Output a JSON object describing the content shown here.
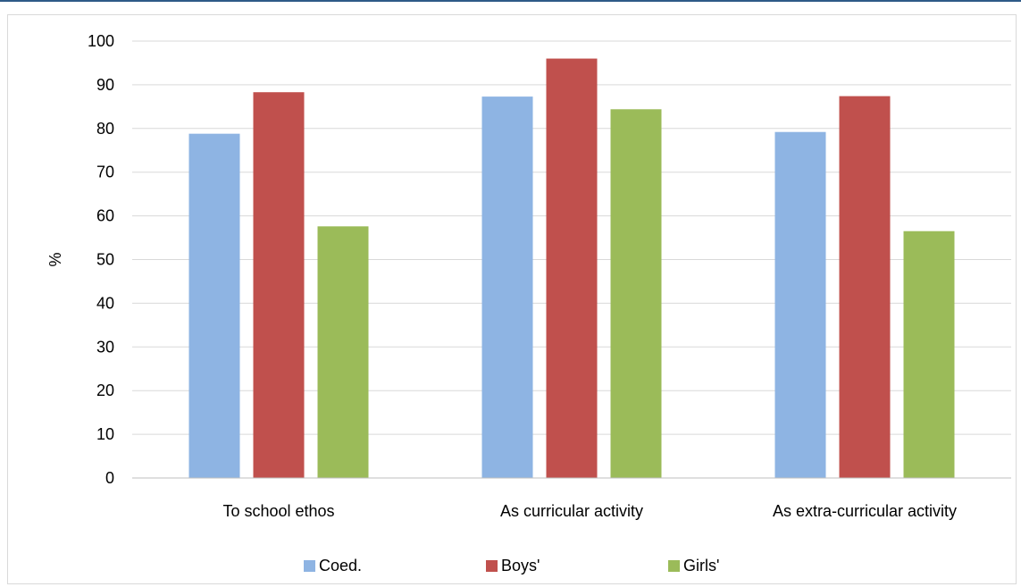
{
  "chart_data": {
    "type": "bar",
    "categories": [
      "To school ethos",
      "As curricular activity",
      "As extra-curricular activity"
    ],
    "series": [
      {
        "name": "Coed.",
        "values": [
          78.8,
          87.3,
          79.2
        ],
        "color": "#8eb4e3"
      },
      {
        "name": "Boys'",
        "values": [
          88.3,
          96.0,
          87.4
        ],
        "color": "#c0504d"
      },
      {
        "name": "Girls'",
        "values": [
          57.6,
          84.4,
          56.5
        ],
        "color": "#9bbb59"
      }
    ],
    "title": "",
    "xlabel": "",
    "ylabel": "%",
    "ylim": [
      0,
      100
    ],
    "yticks": [
      0,
      10,
      20,
      30,
      40,
      50,
      60,
      70,
      80,
      90,
      100
    ],
    "grid": true,
    "legend_position": "bottom"
  }
}
